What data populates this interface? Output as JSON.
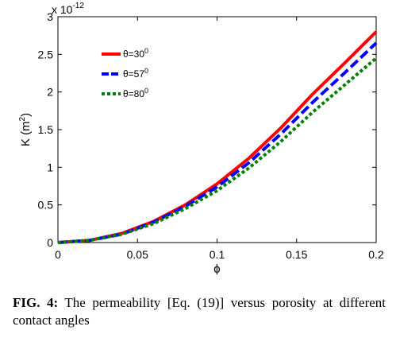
{
  "chart_data": {
    "type": "line",
    "xlabel": "ϕ",
    "ylabel_base": "K (m",
    "ylabel_sup": "2",
    "ylabel_end": ")",
    "y_multiplier_base": "x 10",
    "y_multiplier_exp": "-12",
    "xlim": [
      0,
      0.2
    ],
    "ylim": [
      0,
      3
    ],
    "x_ticks": [
      0,
      0.05,
      0.1,
      0.15,
      0.2
    ],
    "x_tick_labels": [
      "0",
      "0.05",
      "0.1",
      "0.15",
      "0.2"
    ],
    "y_ticks": [
      0,
      0.5,
      1,
      1.5,
      2,
      2.5,
      3
    ],
    "y_tick_labels": [
      "0",
      "0.5",
      "1",
      "1.5",
      "2",
      "2.5",
      "3"
    ],
    "grid": false,
    "legend_position": "top-left",
    "series": [
      {
        "name_base": "θ=30",
        "name_sup": "0",
        "color": "#ff0000",
        "dash": "solid",
        "x": [
          0,
          0.02,
          0.04,
          0.06,
          0.08,
          0.1,
          0.12,
          0.14,
          0.16,
          0.18,
          0.2
        ],
        "values": [
          0,
          0.03,
          0.12,
          0.28,
          0.5,
          0.78,
          1.12,
          1.52,
          1.97,
          2.38,
          2.8
        ]
      },
      {
        "name_base": "θ=57",
        "name_sup": "0",
        "color": "#0000ff",
        "dash": "dashed",
        "x": [
          0,
          0.02,
          0.04,
          0.06,
          0.08,
          0.1,
          0.12,
          0.14,
          0.16,
          0.18,
          0.2
        ],
        "values": [
          0,
          0.03,
          0.11,
          0.27,
          0.48,
          0.74,
          1.06,
          1.44,
          1.86,
          2.25,
          2.65
        ]
      },
      {
        "name_base": "θ=80",
        "name_sup": "0",
        "color": "#008000",
        "dash": "dotted",
        "x": [
          0,
          0.02,
          0.04,
          0.06,
          0.08,
          0.1,
          0.12,
          0.14,
          0.16,
          0.18,
          0.2
        ],
        "values": [
          0,
          0.03,
          0.11,
          0.25,
          0.45,
          0.69,
          0.99,
          1.34,
          1.73,
          2.09,
          2.45
        ]
      }
    ]
  },
  "caption": {
    "label": "FIG. 4:",
    "text": " The permeability [Eq. (19)] versus porosity at different contact angles"
  }
}
